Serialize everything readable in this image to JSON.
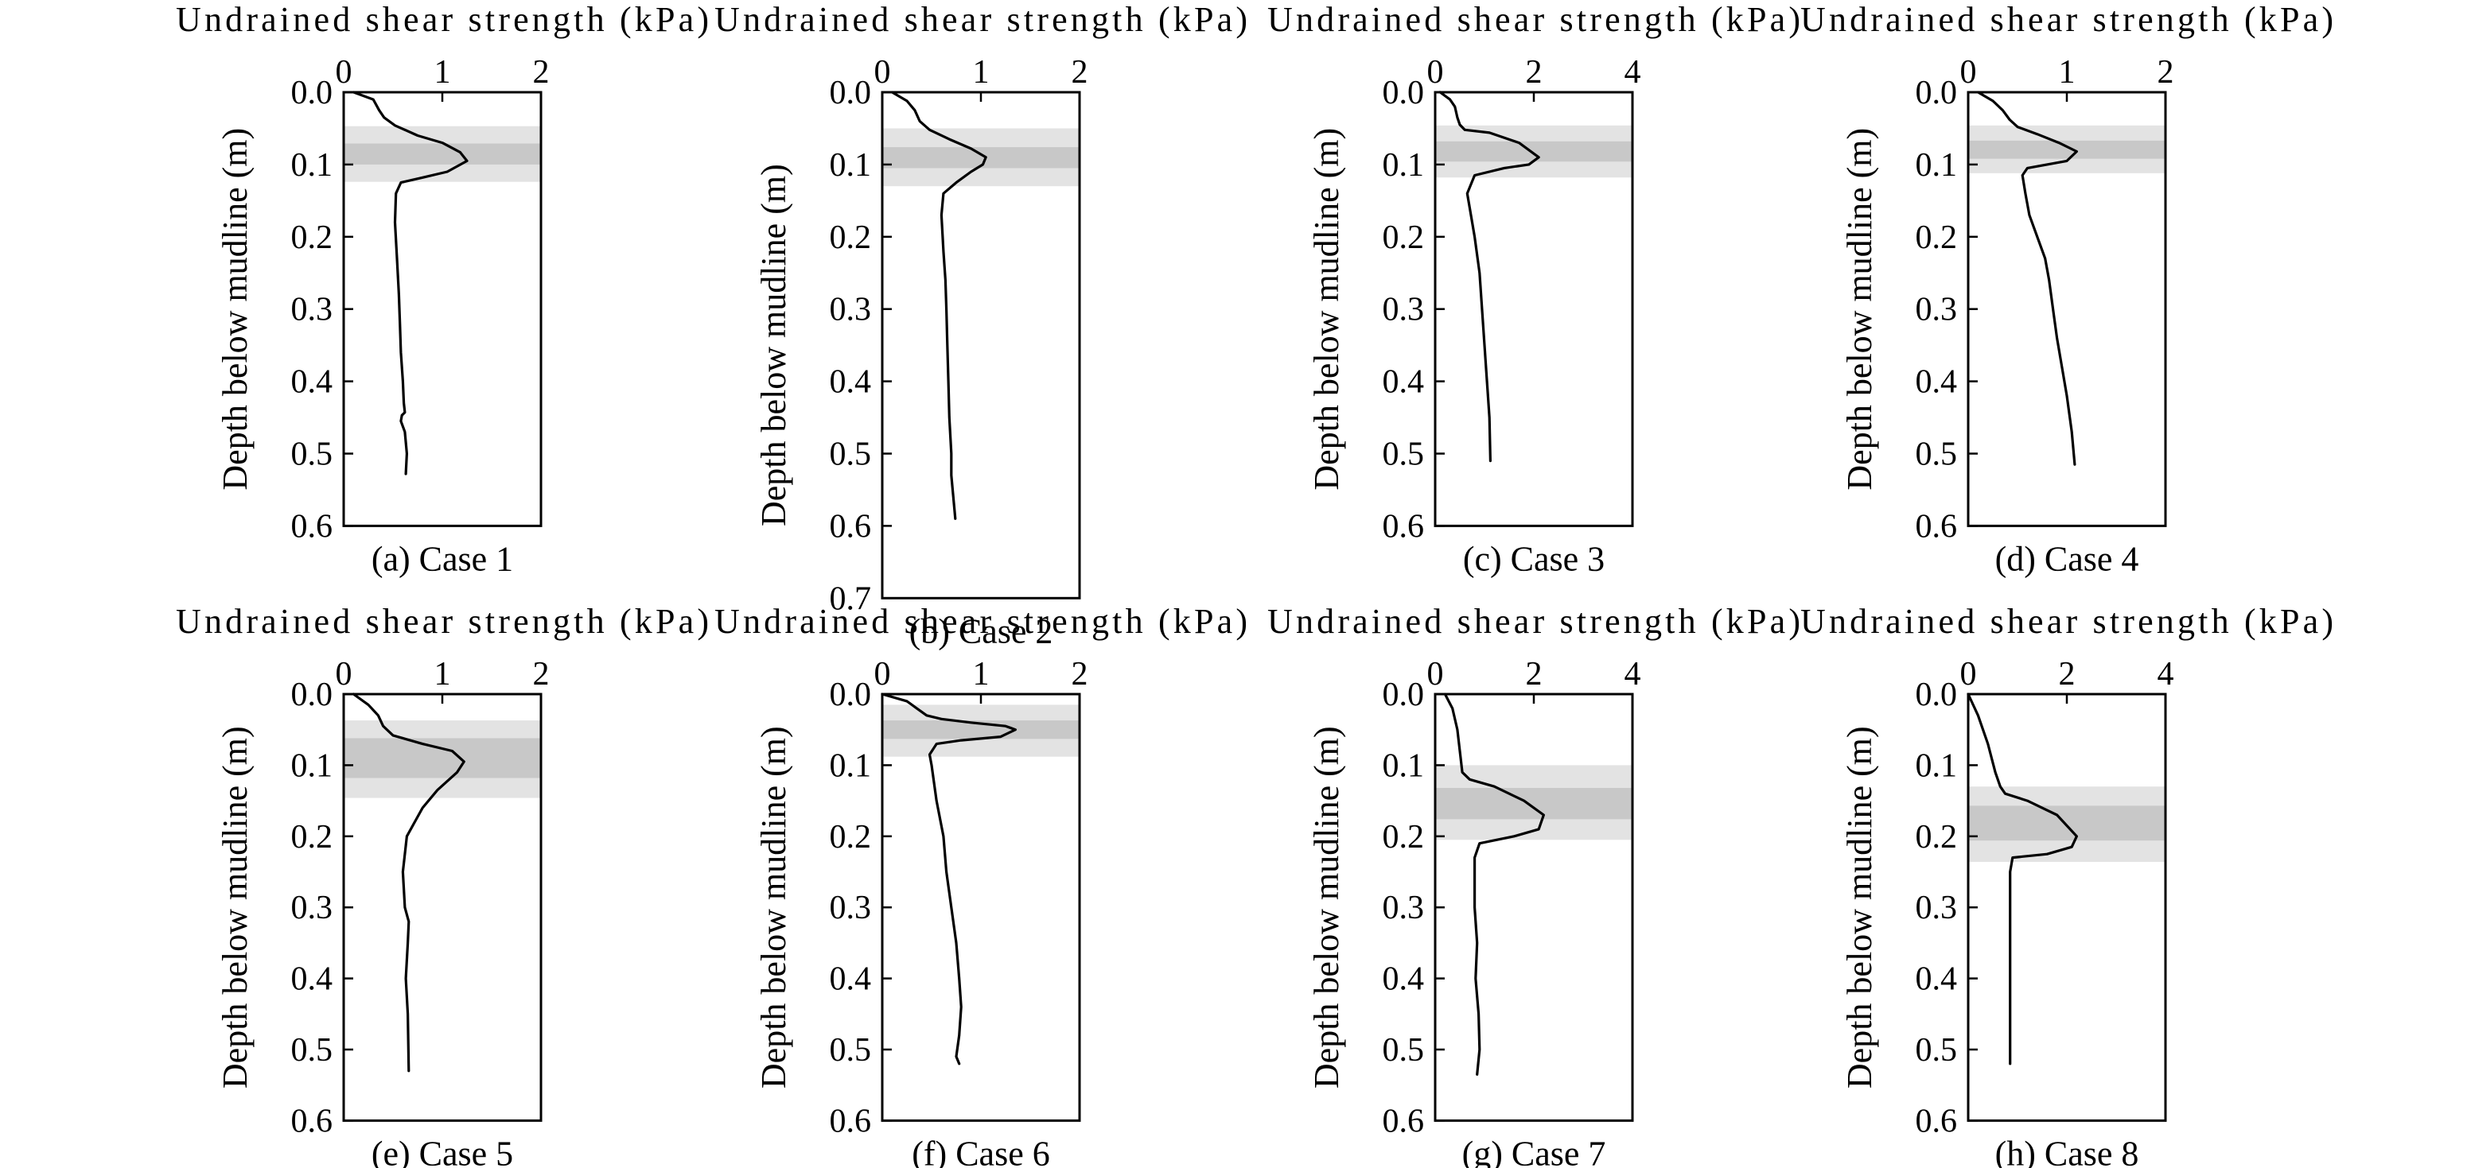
{
  "figure": {
    "colors": {
      "line": "#000000",
      "frame": "#000000",
      "band_outer": "#e3e3e3",
      "band_inner": "#c8c8c8"
    }
  },
  "chart_data": [
    {
      "type": "line",
      "caption": "(a) Case 1",
      "xlabel": "Undrained shear strength (kPa)",
      "ylabel": "Depth below mudline (m)",
      "xlim": [
        0,
        2
      ],
      "ylim": [
        0.6,
        0.0
      ],
      "x_axis_position": "top",
      "y_inverted": true,
      "xticks": [
        "0",
        "1",
        "2"
      ],
      "yticks": [
        "0.0",
        "0.1",
        "0.2",
        "0.3",
        "0.4",
        "0.5",
        "0.6"
      ],
      "bands": [
        {
          "name": "outer",
          "y0": 0.047,
          "y1": 0.124
        },
        {
          "name": "inner",
          "y0": 0.071,
          "y1": 0.1
        }
      ],
      "series": [
        {
          "x": [
            0.1,
            0.3,
            0.36,
            0.41,
            0.52,
            0.75,
            1.0,
            1.18,
            1.25,
            1.05,
            0.8,
            0.58,
            0.53,
            0.52,
            0.54,
            0.56,
            0.57,
            0.58,
            0.6,
            0.61,
            0.62,
            0.59,
            0.58,
            0.62,
            0.64,
            0.63
          ],
          "y": [
            0.0,
            0.01,
            0.025,
            0.035,
            0.046,
            0.06,
            0.07,
            0.083,
            0.095,
            0.11,
            0.118,
            0.125,
            0.14,
            0.18,
            0.23,
            0.28,
            0.32,
            0.36,
            0.4,
            0.43,
            0.443,
            0.447,
            0.455,
            0.47,
            0.5,
            0.528
          ]
        }
      ]
    },
    {
      "type": "line",
      "caption": "(b) Case 2",
      "xlabel": "Undrained shear strength (kPa)",
      "ylabel": "Depth below mudline (m)",
      "xlim": [
        0,
        2
      ],
      "ylim": [
        0.7,
        0.0
      ],
      "x_axis_position": "top",
      "y_inverted": true,
      "xticks": [
        "0",
        "1",
        "2"
      ],
      "yticks": [
        "0.0",
        "0.1",
        "0.2",
        "0.3",
        "0.4",
        "0.5",
        "0.6",
        "0.7"
      ],
      "bands": [
        {
          "name": "outer",
          "y0": 0.05,
          "y1": 0.13
        },
        {
          "name": "inner",
          "y0": 0.076,
          "y1": 0.105
        }
      ],
      "series": [
        {
          "x": [
            0.1,
            0.25,
            0.33,
            0.38,
            0.48,
            0.68,
            0.9,
            1.05,
            1.02,
            0.9,
            0.75,
            0.62,
            0.6,
            0.62,
            0.64,
            0.65,
            0.66,
            0.67,
            0.68,
            0.7,
            0.7,
            0.72,
            0.74
          ],
          "y": [
            0.0,
            0.012,
            0.025,
            0.04,
            0.052,
            0.065,
            0.078,
            0.09,
            0.1,
            0.11,
            0.125,
            0.14,
            0.17,
            0.22,
            0.26,
            0.3,
            0.35,
            0.4,
            0.45,
            0.5,
            0.53,
            0.56,
            0.59
          ]
        }
      ]
    },
    {
      "type": "line",
      "caption": "(c) Case 3",
      "xlabel": "Undrained shear strength (kPa)",
      "ylabel": "Depth below mudline (m)",
      "xlim": [
        0,
        4
      ],
      "ylim": [
        0.6,
        0.0
      ],
      "x_axis_position": "top",
      "y_inverted": true,
      "xticks": [
        "0",
        "2",
        "4"
      ],
      "yticks": [
        "0.0",
        "0.1",
        "0.2",
        "0.3",
        "0.4",
        "0.5",
        "0.6"
      ],
      "bands": [
        {
          "name": "outer",
          "y0": 0.046,
          "y1": 0.118
        },
        {
          "name": "inner",
          "y0": 0.068,
          "y1": 0.096
        }
      ],
      "series": [
        {
          "x": [
            0.1,
            0.3,
            0.4,
            0.45,
            0.5,
            0.6,
            1.1,
            1.7,
            2.1,
            1.9,
            1.4,
            0.8,
            0.65,
            0.7,
            0.8,
            0.9,
            0.95,
            1.0,
            1.05,
            1.1,
            1.12
          ],
          "y": [
            0.0,
            0.01,
            0.02,
            0.035,
            0.045,
            0.052,
            0.056,
            0.07,
            0.09,
            0.1,
            0.105,
            0.115,
            0.14,
            0.16,
            0.2,
            0.25,
            0.3,
            0.35,
            0.4,
            0.45,
            0.51
          ]
        }
      ]
    },
    {
      "type": "line",
      "caption": "(d) Case 4",
      "xlabel": "Undrained shear strength (kPa)",
      "ylabel": "Depth below mudline (m)",
      "xlim": [
        0,
        2
      ],
      "ylim": [
        0.6,
        0.0
      ],
      "x_axis_position": "top",
      "y_inverted": true,
      "xticks": [
        "0",
        "1",
        "2"
      ],
      "yticks": [
        "0.0",
        "0.1",
        "0.2",
        "0.3",
        "0.4",
        "0.5",
        "0.6"
      ],
      "bands": [
        {
          "name": "outer",
          "y0": 0.046,
          "y1": 0.112
        },
        {
          "name": "inner",
          "y0": 0.067,
          "y1": 0.092
        }
      ],
      "series": [
        {
          "x": [
            0.1,
            0.25,
            0.35,
            0.42,
            0.5,
            0.7,
            0.92,
            1.1,
            1.0,
            0.8,
            0.6,
            0.55,
            0.58,
            0.62,
            0.7,
            0.78,
            0.82,
            0.86,
            0.9,
            0.95,
            1.0,
            1.05,
            1.08
          ],
          "y": [
            0.0,
            0.012,
            0.025,
            0.038,
            0.048,
            0.058,
            0.07,
            0.082,
            0.095,
            0.1,
            0.105,
            0.115,
            0.14,
            0.17,
            0.2,
            0.23,
            0.26,
            0.3,
            0.34,
            0.38,
            0.42,
            0.47,
            0.515
          ]
        }
      ]
    },
    {
      "type": "line",
      "caption": "(e) Case 5",
      "xlabel": "Undrained shear strength (kPa)",
      "ylabel": "Depth below mudline (m)",
      "xlim": [
        0,
        2
      ],
      "ylim": [
        0.6,
        0.0
      ],
      "x_axis_position": "top",
      "y_inverted": true,
      "xticks": [
        "0",
        "1",
        "2"
      ],
      "yticks": [
        "0.0",
        "0.1",
        "0.2",
        "0.3",
        "0.4",
        "0.5",
        "0.6"
      ],
      "bands": [
        {
          "name": "outer",
          "y0": 0.037,
          "y1": 0.146
        },
        {
          "name": "inner",
          "y0": 0.062,
          "y1": 0.118
        }
      ],
      "series": [
        {
          "x": [
            0.1,
            0.25,
            0.35,
            0.4,
            0.5,
            0.8,
            1.1,
            1.22,
            1.15,
            0.95,
            0.8,
            0.72,
            0.64,
            0.6,
            0.62,
            0.66,
            0.65,
            0.63,
            0.65,
            0.66
          ],
          "y": [
            0.0,
            0.015,
            0.03,
            0.045,
            0.058,
            0.07,
            0.08,
            0.095,
            0.11,
            0.135,
            0.16,
            0.18,
            0.2,
            0.25,
            0.3,
            0.32,
            0.35,
            0.4,
            0.45,
            0.53
          ]
        }
      ]
    },
    {
      "type": "line",
      "caption": "(f) Case 6",
      "xlabel": "Undrained shear strength (kPa)",
      "ylabel": "Depth below mudline (m)",
      "xlim": [
        0,
        2
      ],
      "ylim": [
        0.6,
        0.0
      ],
      "x_axis_position": "top",
      "y_inverted": true,
      "xticks": [
        "0",
        "1",
        "2"
      ],
      "yticks": [
        "0.0",
        "0.1",
        "0.2",
        "0.3",
        "0.4",
        "0.5",
        "0.6"
      ],
      "bands": [
        {
          "name": "outer",
          "y0": 0.015,
          "y1": 0.088
        },
        {
          "name": "inner",
          "y0": 0.037,
          "y1": 0.063
        }
      ],
      "series": [
        {
          "x": [
            0.0,
            0.25,
            0.35,
            0.45,
            0.6,
            0.9,
            1.25,
            1.35,
            1.2,
            0.8,
            0.55,
            0.48,
            0.5,
            0.55,
            0.62,
            0.65,
            0.7,
            0.75,
            0.78,
            0.8,
            0.78,
            0.75,
            0.78
          ],
          "y": [
            0.0,
            0.01,
            0.02,
            0.03,
            0.035,
            0.04,
            0.045,
            0.05,
            0.06,
            0.065,
            0.07,
            0.085,
            0.1,
            0.15,
            0.2,
            0.25,
            0.3,
            0.35,
            0.4,
            0.44,
            0.48,
            0.51,
            0.52
          ]
        }
      ]
    },
    {
      "type": "line",
      "caption": "(g) Case 7",
      "xlabel": "Undrained shear strength (kPa)",
      "ylabel": "Depth below mudline (m)",
      "xlim": [
        0,
        4
      ],
      "ylim": [
        0.6,
        0.0
      ],
      "x_axis_position": "top",
      "y_inverted": true,
      "xticks": [
        "0",
        "2",
        "4"
      ],
      "yticks": [
        "0.0",
        "0.1",
        "0.2",
        "0.3",
        "0.4",
        "0.5",
        "0.6"
      ],
      "bands": [
        {
          "name": "outer",
          "y0": 0.1,
          "y1": 0.205
        },
        {
          "name": "inner",
          "y0": 0.132,
          "y1": 0.176
        }
      ],
      "series": [
        {
          "x": [
            0.2,
            0.35,
            0.45,
            0.5,
            0.55,
            0.7,
            1.2,
            1.8,
            2.2,
            2.1,
            1.6,
            0.9,
            0.8,
            0.8,
            0.85,
            0.82,
            0.88,
            0.9,
            0.85
          ],
          "y": [
            0.0,
            0.02,
            0.05,
            0.08,
            0.11,
            0.12,
            0.13,
            0.15,
            0.17,
            0.19,
            0.2,
            0.21,
            0.23,
            0.3,
            0.35,
            0.4,
            0.45,
            0.5,
            0.535
          ]
        }
      ]
    },
    {
      "type": "line",
      "caption": "(h) Case 8",
      "xlabel": "Undrained shear strength (kPa)",
      "ylabel": "Depth below mudline (m)",
      "xlim": [
        0,
        4
      ],
      "ylim": [
        0.6,
        0.0
      ],
      "x_axis_position": "top",
      "y_inverted": true,
      "xticks": [
        "0",
        "2",
        "4"
      ],
      "yticks": [
        "0.0",
        "0.1",
        "0.2",
        "0.3",
        "0.4",
        "0.5",
        "0.6"
      ],
      "bands": [
        {
          "name": "outer",
          "y0": 0.13,
          "y1": 0.236
        },
        {
          "name": "inner",
          "y0": 0.157,
          "y1": 0.206
        }
      ],
      "series": [
        {
          "x": [
            0.0,
            0.2,
            0.4,
            0.55,
            0.65,
            0.75,
            1.2,
            1.8,
            2.2,
            2.1,
            1.6,
            0.9,
            0.85,
            0.85,
            0.85,
            0.85,
            0.85
          ],
          "y": [
            0.0,
            0.03,
            0.07,
            0.11,
            0.13,
            0.14,
            0.15,
            0.17,
            0.2,
            0.215,
            0.225,
            0.23,
            0.25,
            0.3,
            0.4,
            0.45,
            0.52
          ]
        }
      ]
    }
  ]
}
